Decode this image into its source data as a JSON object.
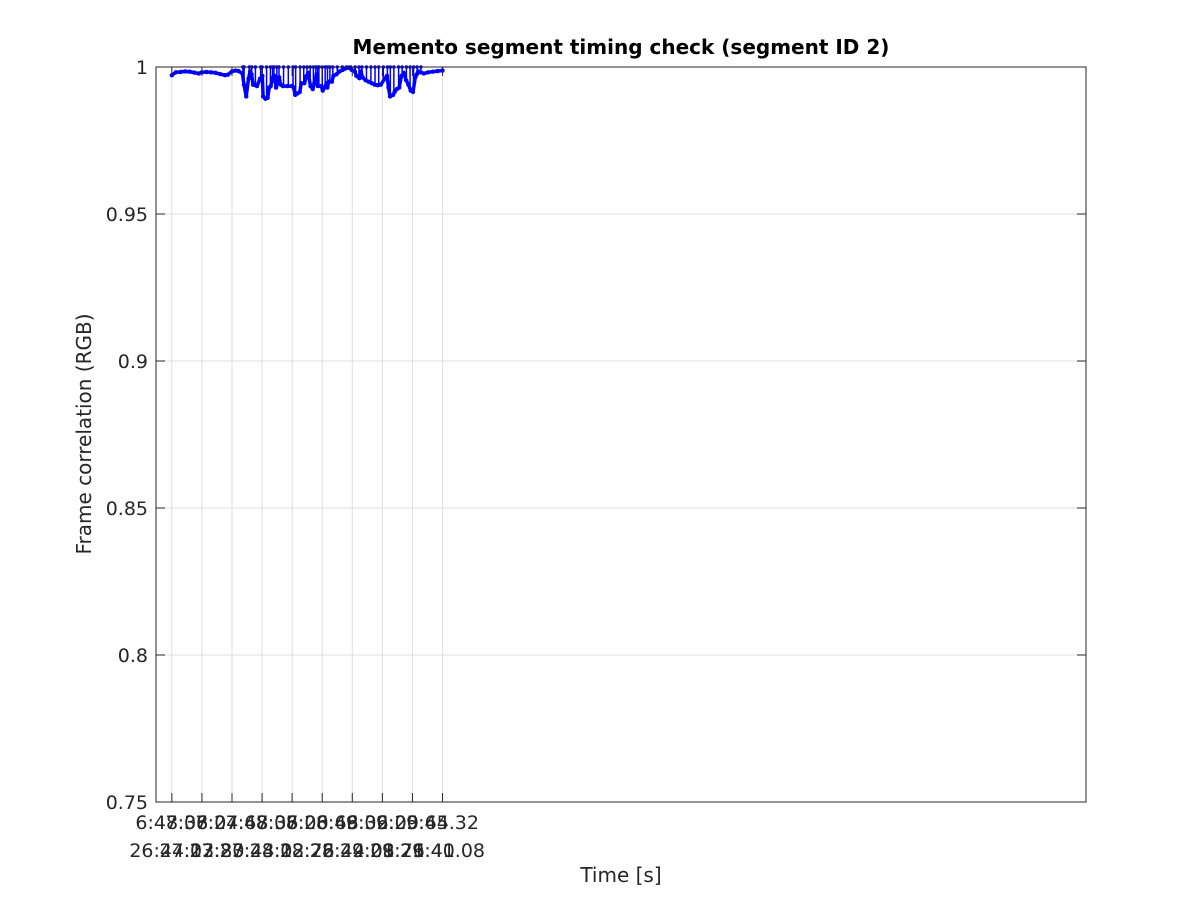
{
  "chart_data": {
    "type": "line",
    "title": "Memento segment timing check (segment ID 2)",
    "xlabel": "Time [s]",
    "ylabel": "Frame correlation (RGB)",
    "ylim": [
      0.75,
      1
    ],
    "yticks": [
      "0.75",
      "0.8",
      "0.85",
      "0.9",
      "0.95",
      "1"
    ],
    "yticks_values": [
      0.75,
      0.8,
      0.85,
      0.9,
      0.95,
      1
    ],
    "xticks_line1": [
      "6:48.36",
      "7:08.04",
      "7:27.68",
      "7:47.36",
      "8:07.00",
      "8:26.68",
      "8:46.32",
      "9:06.00",
      "9:25.64",
      "9:45.32"
    ],
    "xticks_line2": [
      "26:44.12",
      "27:03.80",
      "27:23.44",
      "27:43.12",
      "28:02.76",
      "28:22.44",
      "28:42.08",
      "29:01.76",
      "29:21.40",
      "29:41.08"
    ],
    "xlim_s": [
      398,
      1006
    ],
    "xticks_s": [
      408.36,
      428.04,
      447.68,
      467.36,
      487.0,
      506.68,
      526.32,
      546.0,
      565.64,
      585.32
    ],
    "grid": true,
    "legend": "none",
    "series": [
      {
        "color": "#0000ff",
        "x_start_s": 408.36,
        "x_end_s": 585.32,
        "y_baseline": [
          [
            408.36,
            0.9972
          ],
          [
            411.0,
            0.9982
          ],
          [
            414.0,
            0.9983
          ],
          [
            417.0,
            0.9985
          ],
          [
            420.0,
            0.9984
          ],
          [
            423.0,
            0.9981
          ],
          [
            426.0,
            0.9978
          ],
          [
            428.0,
            0.9982
          ],
          [
            431.0,
            0.9983
          ],
          [
            434.0,
            0.9982
          ],
          [
            437.0,
            0.998
          ],
          [
            440.0,
            0.9976
          ],
          [
            443.0,
            0.9972
          ],
          [
            445.0,
            0.9974
          ],
          [
            447.7,
            0.9985
          ],
          [
            450.0,
            0.9988
          ],
          [
            452.0,
            0.9986
          ],
          [
            454.5,
            0.9978
          ],
          [
            455.5,
            0.994
          ],
          [
            457.0,
            0.99
          ],
          [
            458.5,
            0.996
          ],
          [
            459.5,
            0.9985
          ],
          [
            460.5,
            0.9975
          ],
          [
            461.5,
            0.994
          ],
          [
            464.0,
            0.9935
          ],
          [
            466.0,
            0.996
          ],
          [
            467.5,
            0.997
          ],
          [
            468.0,
            0.99
          ],
          [
            469.5,
            0.9892
          ],
          [
            471.0,
            0.9895
          ],
          [
            472.0,
            0.993
          ],
          [
            473.0,
            0.9935
          ],
          [
            474.5,
            0.9965
          ],
          [
            475.5,
            0.997
          ],
          [
            476.5,
            0.993
          ],
          [
            477.5,
            0.995
          ],
          [
            478.5,
            0.9965
          ],
          [
            479.5,
            0.994
          ],
          [
            481.0,
            0.9935
          ],
          [
            484.0,
            0.9935
          ],
          [
            487.0,
            0.9935
          ],
          [
            488.0,
            0.993
          ],
          [
            489.0,
            0.9905
          ],
          [
            490.5,
            0.991
          ],
          [
            492.0,
            0.9915
          ],
          [
            493.0,
            0.9945
          ],
          [
            495.0,
            0.9945
          ],
          [
            496.5,
            0.997
          ],
          [
            497.5,
            0.998
          ],
          [
            499.0,
            0.9935
          ],
          [
            500.5,
            0.9925
          ],
          [
            501.5,
            0.9945
          ],
          [
            503.0,
            0.9975
          ],
          [
            503.8,
            0.9935
          ],
          [
            506.0,
            0.9935
          ],
          [
            507.0,
            0.992
          ],
          [
            508.0,
            0.993
          ],
          [
            509.5,
            0.9945
          ],
          [
            510.0,
            0.993
          ],
          [
            511.0,
            0.995
          ],
          [
            513.0,
            0.995
          ],
          [
            514.0,
            0.997
          ],
          [
            516.0,
            0.9975
          ],
          [
            518.0,
            0.9985
          ],
          [
            520.0,
            0.999
          ],
          [
            522.0,
            0.9995
          ],
          [
            524.0,
            0.9998
          ],
          [
            526.0,
            0.999
          ],
          [
            528.0,
            0.9985
          ],
          [
            529.0,
            0.997
          ],
          [
            531.0,
            0.9962
          ],
          [
            532.0,
            0.9985
          ],
          [
            533.0,
            0.9965
          ],
          [
            535.0,
            0.9955
          ],
          [
            537.0,
            0.995
          ],
          [
            539.0,
            0.9945
          ],
          [
            541.0,
            0.994
          ],
          [
            543.0,
            0.9938
          ],
          [
            545.0,
            0.994
          ],
          [
            547.5,
            0.996
          ],
          [
            549.0,
            0.997
          ],
          [
            550.0,
            0.993
          ],
          [
            551.0,
            0.99
          ],
          [
            553.0,
            0.9905
          ],
          [
            554.0,
            0.9915
          ],
          [
            555.5,
            0.9925
          ],
          [
            557.0,
            0.993
          ],
          [
            558.5,
            0.997
          ],
          [
            560.0,
            0.998
          ],
          [
            561.5,
            0.9955
          ],
          [
            563.0,
            0.994
          ],
          [
            564.5,
            0.992
          ],
          [
            566.0,
            0.9915
          ],
          [
            567.5,
            0.9965
          ],
          [
            568.5,
            0.9975
          ],
          [
            569.5,
            0.9985
          ],
          [
            571.0,
            0.9982
          ],
          [
            573.0,
            0.9978
          ],
          [
            576.0,
            0.9982
          ],
          [
            579.0,
            0.9984
          ],
          [
            582.0,
            0.9986
          ],
          [
            585.32,
            0.9988
          ]
        ],
        "spikes_x_s": [
          454.8,
          455.6,
          459.0,
          460.6,
          463.0,
          466.4,
          467.4,
          470.3,
          472.8,
          474.2,
          475.1,
          477.0,
          478.4,
          481.4,
          484.5,
          487.6,
          489.3,
          492.2,
          494.6,
          496.7,
          498.8,
          500.9,
          502.5,
          503.6,
          504.5,
          506.7,
          508.6,
          510.1,
          511.7,
          513.6,
          516.5,
          519.8,
          522.5,
          525.3,
          528.2,
          530.7,
          532.6,
          535.6,
          538.5,
          541.2,
          543.6,
          546.6,
          549.3,
          551.2,
          553.5,
          556.6,
          558.9,
          561.7,
          564.1,
          566.4,
          568.7,
          571.2
        ]
      }
    ]
  }
}
